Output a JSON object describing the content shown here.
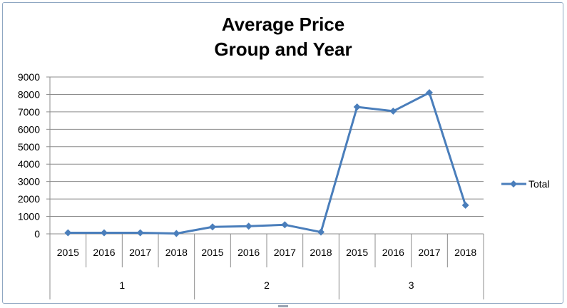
{
  "chart_data": {
    "type": "line",
    "title_lines": [
      "Average Price",
      "Group and Year"
    ],
    "xlabel": "",
    "ylabel": "",
    "ylim": [
      0,
      9000
    ],
    "ytick_step": 1000,
    "grid": true,
    "legend_position": "right",
    "categories": [
      {
        "group": "1",
        "year": "2015"
      },
      {
        "group": "1",
        "year": "2016"
      },
      {
        "group": "1",
        "year": "2017"
      },
      {
        "group": "1",
        "year": "2018"
      },
      {
        "group": "2",
        "year": "2015"
      },
      {
        "group": "2",
        "year": "2016"
      },
      {
        "group": "2",
        "year": "2017"
      },
      {
        "group": "2",
        "year": "2018"
      },
      {
        "group": "3",
        "year": "2015"
      },
      {
        "group": "3",
        "year": "2016"
      },
      {
        "group": "3",
        "year": "2017"
      },
      {
        "group": "3",
        "year": "2018"
      }
    ],
    "groups": [
      "1",
      "2",
      "3"
    ],
    "series": [
      {
        "name": "Total",
        "color": "#4a7ebb",
        "values": [
          60,
          60,
          60,
          20,
          400,
          440,
          520,
          100,
          7280,
          7040,
          8100,
          1640
        ]
      }
    ]
  }
}
